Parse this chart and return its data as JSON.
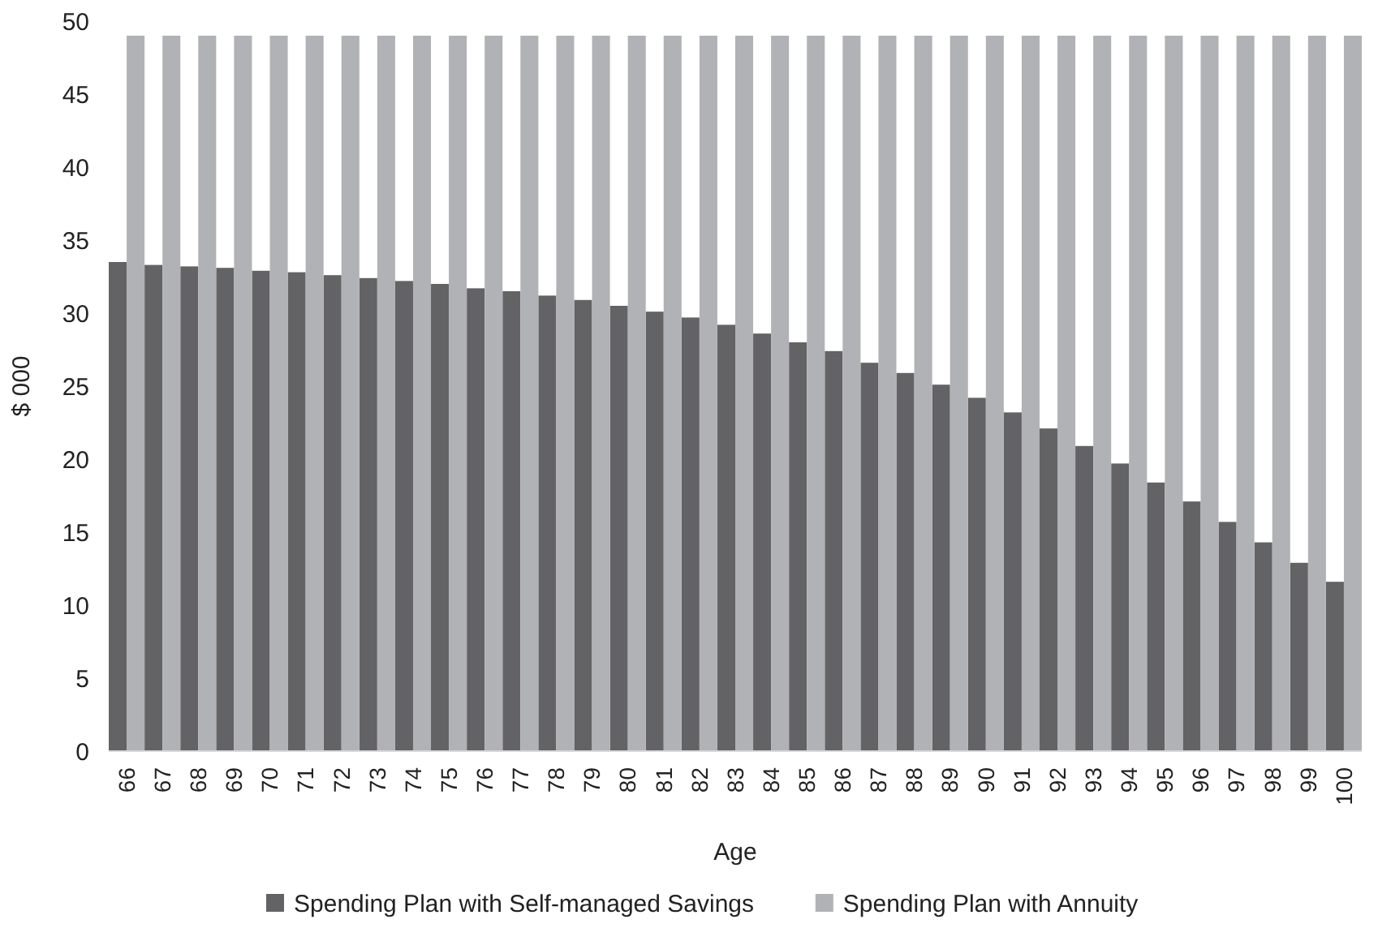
{
  "chart_data": {
    "type": "bar",
    "xlabel": "Age",
    "ylabel": "$ 000",
    "categories": [
      "66",
      "67",
      "68",
      "69",
      "70",
      "71",
      "72",
      "73",
      "74",
      "75",
      "76",
      "77",
      "78",
      "79",
      "80",
      "81",
      "82",
      "83",
      "84",
      "85",
      "86",
      "87",
      "88",
      "89",
      "90",
      "91",
      "92",
      "93",
      "94",
      "95",
      "96",
      "97",
      "98",
      "99",
      "100"
    ],
    "series": [
      {
        "name": "Spending Plan with Self-managed Savings",
        "color": "#636365",
        "values": [
          33.5,
          33.3,
          33.2,
          33.1,
          32.9,
          32.8,
          32.6,
          32.4,
          32.2,
          32.0,
          31.7,
          31.5,
          31.2,
          30.9,
          30.5,
          30.1,
          29.7,
          29.2,
          28.6,
          28.0,
          27.4,
          26.6,
          25.9,
          25.1,
          24.2,
          23.2,
          22.1,
          20.9,
          19.7,
          18.4,
          17.1,
          15.7,
          14.3,
          12.9,
          11.6
        ]
      },
      {
        "name": "Spending Plan with Annuity",
        "color": "#b1b2b6",
        "values": [
          49,
          49,
          49,
          49,
          49,
          49,
          49,
          49,
          49,
          49,
          49,
          49,
          49,
          49,
          49,
          49,
          49,
          49,
          49,
          49,
          49,
          49,
          49,
          49,
          49,
          49,
          49,
          49,
          49,
          49,
          49,
          49,
          49,
          49,
          49
        ]
      }
    ],
    "ylim": [
      0,
      50
    ],
    "yticks": [
      0,
      5,
      10,
      15,
      20,
      25,
      30,
      35,
      40,
      45,
      50
    ],
    "legend": "bottom"
  }
}
